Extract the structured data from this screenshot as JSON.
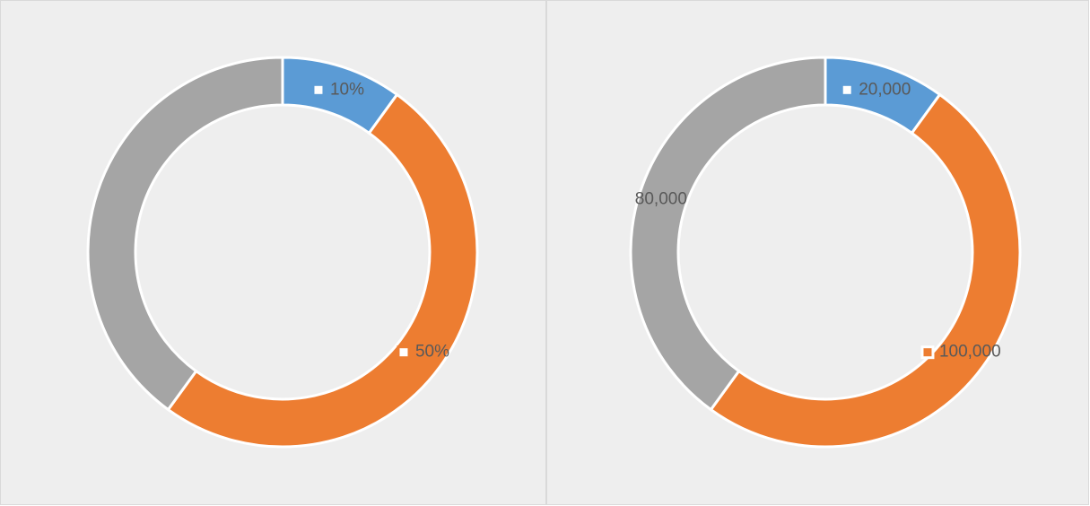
{
  "chart_data": [
    {
      "type": "doughnut",
      "values": [
        10,
        50,
        40
      ],
      "value_labels": [
        "10%",
        "50%",
        null
      ],
      "colors": [
        "#5b9bd5",
        "#ed7d31",
        "#a5a5a5"
      ]
    },
    {
      "type": "doughnut",
      "values": [
        20000,
        100000,
        80000
      ],
      "value_labels": [
        "20,000",
        "100,000",
        "80,000"
      ],
      "colors": [
        "#5b9bd5",
        "#ed7d31",
        "#a5a5a5"
      ]
    }
  ]
}
